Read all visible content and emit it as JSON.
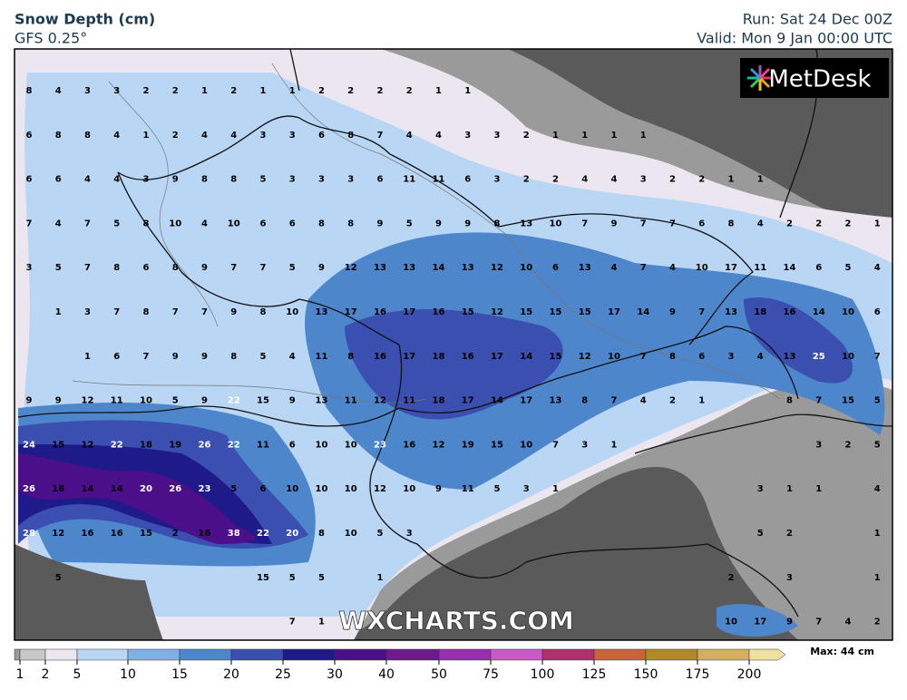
{
  "header": {
    "title": "Snow Depth (cm)",
    "subtitle": "GFS 0.25°",
    "run": "Run: Sat 24 Dec 00Z",
    "valid": "Valid: Mon 9 Jan 00:00 UTC"
  },
  "logo": "MetDesk",
  "watermark": "WXCHARTS.COM",
  "grid_values": [
    [
      8,
      4,
      3,
      3,
      2,
      2,
      1,
      2,
      1,
      1,
      2,
      2,
      2,
      2,
      1,
      1
    ],
    [
      6,
      8,
      8,
      4,
      1,
      2,
      4,
      4,
      3,
      3,
      6,
      8,
      7,
      4,
      4,
      3,
      3,
      2,
      1,
      1,
      1,
      1
    ],
    [
      6,
      6,
      4,
      4,
      3,
      9,
      8,
      8,
      5,
      3,
      3,
      3,
      6,
      11,
      11,
      6,
      3,
      2,
      2,
      4,
      4,
      3,
      2,
      2,
      1,
      1
    ],
    [
      7,
      4,
      7,
      5,
      8,
      10,
      4,
      10,
      6,
      6,
      8,
      8,
      9,
      5,
      9,
      9,
      8,
      13,
      10,
      7,
      9,
      7,
      7,
      6,
      8,
      4,
      2,
      2,
      2,
      1
    ],
    [
      3,
      5,
      7,
      8,
      6,
      8,
      9,
      7,
      7,
      5,
      9,
      12,
      13,
      13,
      14,
      13,
      12,
      10,
      6,
      13,
      4,
      7,
      4,
      10,
      17,
      11,
      14,
      6,
      5,
      4
    ],
    [
      null,
      1,
      3,
      7,
      8,
      7,
      7,
      9,
      8,
      10,
      13,
      17,
      16,
      17,
      16,
      15,
      12,
      15,
      15,
      15,
      17,
      14,
      9,
      7,
      13,
      18,
      16,
      14,
      10,
      6
    ],
    [
      null,
      null,
      1,
      6,
      7,
      9,
      9,
      8,
      5,
      4,
      11,
      8,
      16,
      17,
      18,
      16,
      17,
      14,
      15,
      12,
      10,
      7,
      8,
      6,
      3,
      4,
      13,
      25,
      10,
      7
    ],
    [
      9,
      9,
      12,
      11,
      10,
      5,
      9,
      22,
      15,
      9,
      13,
      11,
      12,
      11,
      18,
      17,
      14,
      17,
      13,
      8,
      7,
      4,
      2,
      1,
      null,
      null,
      8,
      7,
      15,
      5
    ],
    [
      24,
      15,
      12,
      22,
      18,
      19,
      26,
      22,
      11,
      6,
      10,
      10,
      23,
      16,
      12,
      19,
      15,
      10,
      7,
      3,
      1,
      null,
      null,
      null,
      null,
      null,
      null,
      3,
      2,
      5
    ],
    [
      26,
      18,
      14,
      14,
      20,
      26,
      23,
      5,
      6,
      10,
      10,
      10,
      12,
      10,
      9,
      11,
      5,
      3,
      1,
      null,
      null,
      null,
      null,
      null,
      null,
      3,
      1,
      1,
      null,
      4
    ],
    [
      28,
      12,
      16,
      16,
      15,
      2,
      16,
      38,
      22,
      20,
      8,
      10,
      5,
      3,
      null,
      null,
      null,
      null,
      null,
      null,
      null,
      null,
      null,
      null,
      null,
      5,
      2,
      null,
      null,
      1
    ],
    [
      null,
      5,
      null,
      null,
      null,
      null,
      null,
      null,
      15,
      5,
      5,
      null,
      1,
      null,
      null,
      null,
      null,
      null,
      null,
      null,
      null,
      null,
      null,
      null,
      2,
      null,
      3,
      null,
      null,
      1
    ],
    [
      null,
      null,
      null,
      null,
      null,
      null,
      null,
      null,
      null,
      7,
      1,
      null,
      null,
      null,
      null,
      null,
      null,
      null,
      null,
      null,
      null,
      null,
      null,
      null,
      10,
      17,
      9,
      7,
      4,
      2
    ]
  ],
  "colorbar": {
    "levels": [
      1,
      2,
      5,
      10,
      15,
      20,
      25,
      30,
      40,
      50,
      75,
      100,
      125,
      150,
      175,
      200
    ],
    "colors": [
      "#9a9a9a",
      "#c8c8c8",
      "#ece6f0",
      "#b9d6f5",
      "#7fb0e6",
      "#4e86cc",
      "#3a4fb0",
      "#1e1a8a",
      "#4b0f8a",
      "#6d1a8c",
      "#9a2eb0",
      "#c85ac8",
      "#b0306e",
      "#c8643c",
      "#b08a2a",
      "#d2b060",
      "#f0e0a0"
    ],
    "max_label": "Max: 44 cm"
  }
}
